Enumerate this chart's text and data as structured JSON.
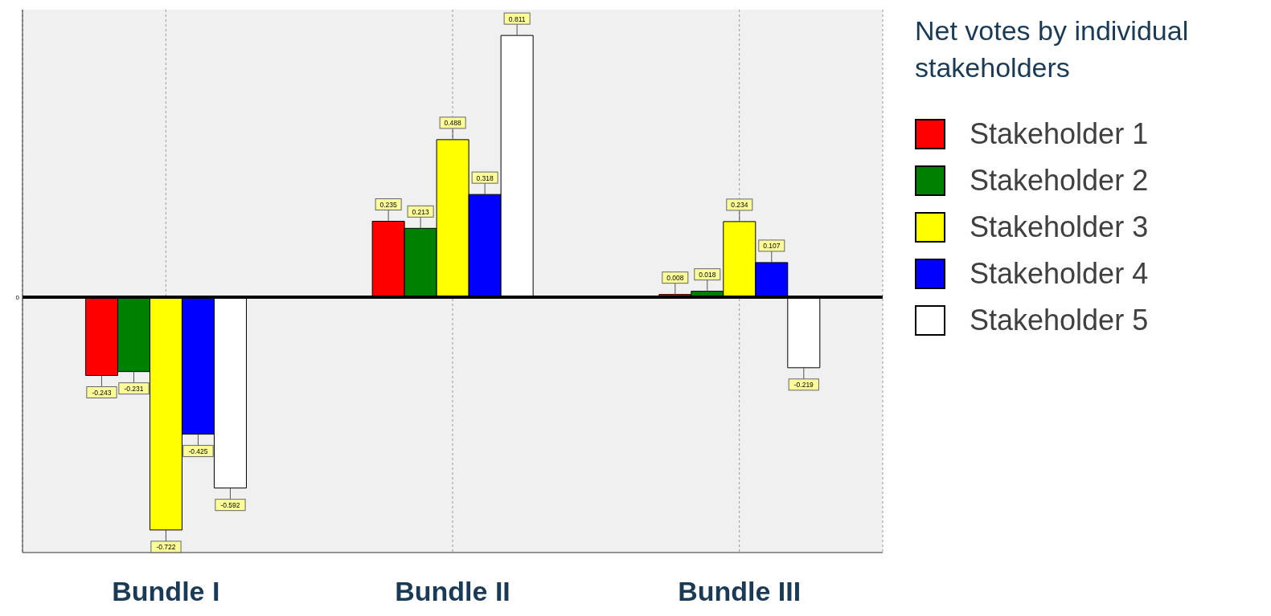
{
  "chart_data": {
    "type": "bar",
    "legend_title": "Net votes by individual stakeholders",
    "categories": [
      "Bundle I",
      "Bundle II",
      "Bundle III"
    ],
    "series": [
      {
        "name": "Stakeholder 1",
        "color": "#ff0000",
        "values": [
          -0.243,
          0.235,
          0.008
        ]
      },
      {
        "name": "Stakeholder 2",
        "color": "#008000",
        "values": [
          -0.231,
          0.213,
          0.018
        ]
      },
      {
        "name": "Stakeholder 3",
        "color": "#ffff00",
        "values": [
          -0.722,
          0.488,
          0.234
        ]
      },
      {
        "name": "Stakeholder 4",
        "color": "#0000ff",
        "values": [
          -0.425,
          0.318,
          0.107
        ]
      },
      {
        "name": "Stakeholder 5",
        "color": "#ffffff",
        "values": [
          -0.592,
          0.811,
          -0.219
        ]
      }
    ],
    "grid": "x",
    "legend": "right",
    "data_labels": true,
    "ref_lines": [
      {
        "axis": "y",
        "value": 0,
        "label": "0",
        "color": "#000000"
      }
    ]
  }
}
